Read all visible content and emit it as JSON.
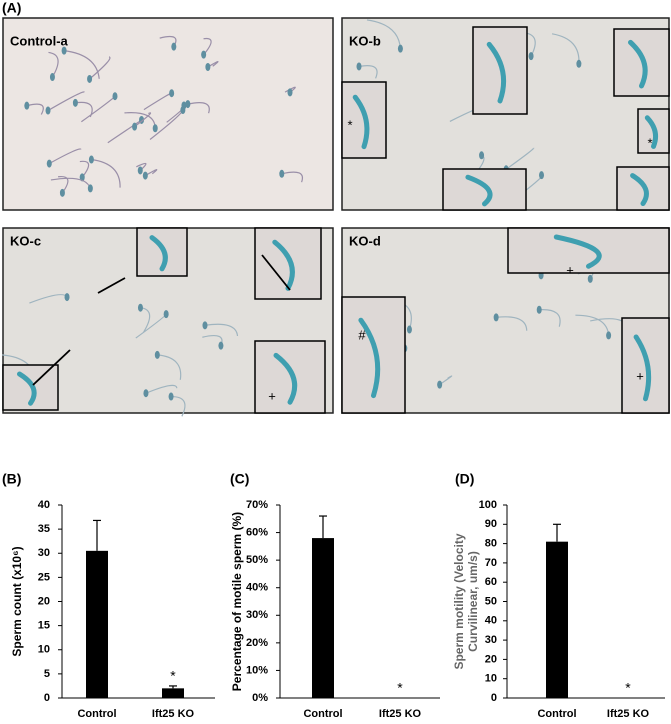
{
  "panel_a": {
    "label": "(A)",
    "panels": [
      {
        "label": "Control-a",
        "markers": []
      },
      {
        "label": "KO-b",
        "markers": [
          "*",
          "*"
        ]
      },
      {
        "label": "KO-c",
        "markers": [
          "+"
        ]
      },
      {
        "label": "KO-d",
        "markers": [
          "+",
          "#",
          "+"
        ]
      }
    ]
  },
  "chart_data": [
    {
      "type": "bar",
      "panel_label": "(B)",
      "y_label": "Sperm count (x10⁶)",
      "categories": [
        "Control",
        "Ift25 KO"
      ],
      "values": [
        30.5,
        2
      ],
      "errors": [
        6.3,
        0.5
      ],
      "color": "#000000",
      "annotation": "*",
      "ylim": [
        0,
        40
      ],
      "yticks": [
        0,
        5,
        10,
        15,
        20,
        25,
        30,
        35,
        40
      ]
    },
    {
      "type": "bar",
      "panel_label": "(C)",
      "y_label": "Percentage of motile sperm (%)",
      "categories": [
        "Control",
        "Ift25 KO"
      ],
      "values": [
        58,
        0
      ],
      "errors": [
        8,
        0
      ],
      "color": "#000000",
      "annotation": "*",
      "ylim": [
        0,
        70
      ],
      "yticks": [
        {
          "value": 0,
          "label": "0%"
        },
        {
          "value": 10,
          "label": "10%"
        },
        {
          "value": 20,
          "label": "20%"
        },
        {
          "value": 30,
          "label": "30%"
        },
        {
          "value": 40,
          "label": "40%"
        },
        {
          "value": 50,
          "label": "50%"
        },
        {
          "value": 60,
          "label": "60%"
        },
        {
          "value": 70,
          "label": "70%"
        }
      ]
    },
    {
      "type": "bar",
      "panel_label": "(D)",
      "y_label": [
        "Sperm motility (Velocity",
        "Curvilinear, um/s)"
      ],
      "categories": [
        "Control",
        "Ift25 KO"
      ],
      "values": [
        81,
        0
      ],
      "errors": [
        9,
        0
      ],
      "color": "#000000",
      "annotation": "*",
      "ylim": [
        0,
        100
      ],
      "yticks": [
        0,
        10,
        20,
        30,
        40,
        50,
        60,
        70,
        80,
        90,
        100
      ]
    }
  ]
}
